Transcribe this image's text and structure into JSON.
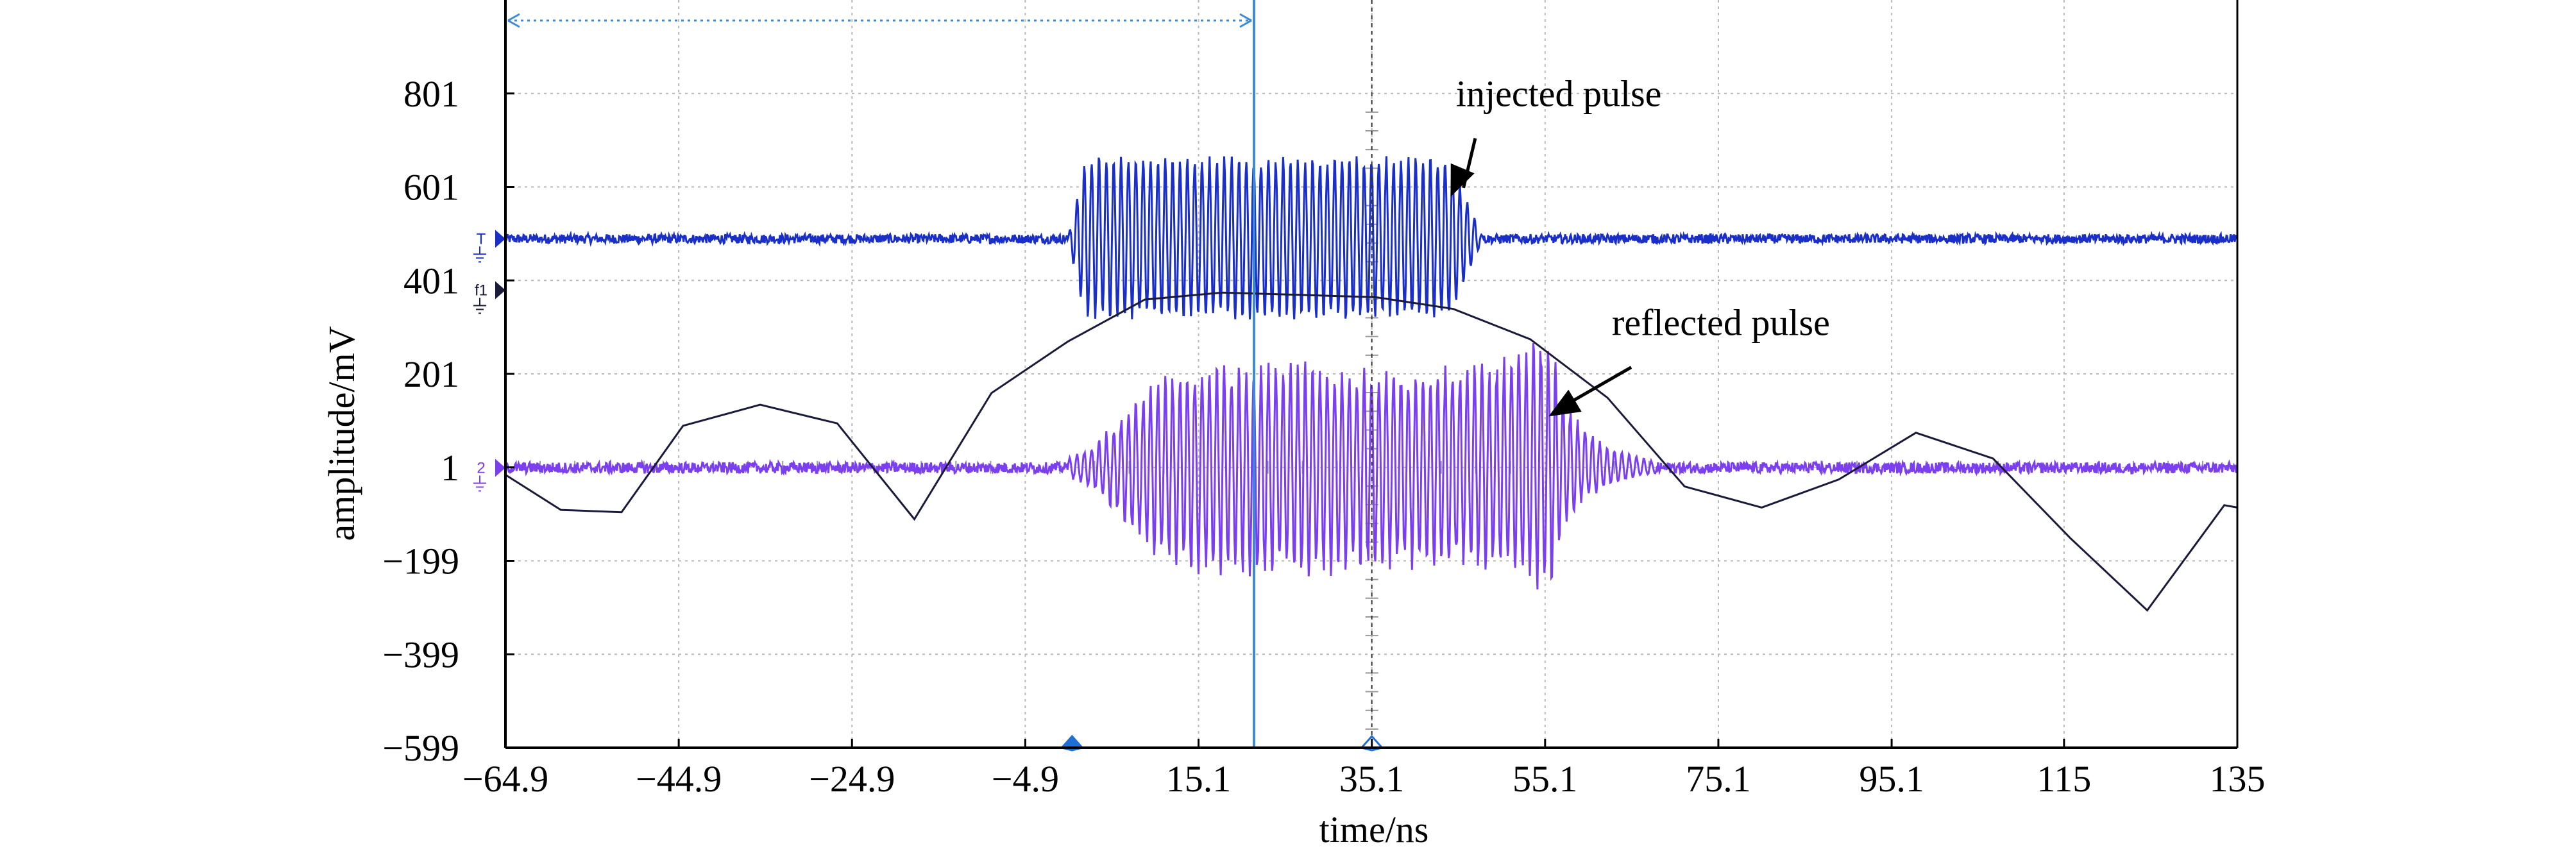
{
  "chart_data": {
    "type": "line",
    "title": "",
    "xlabel": "time/ns",
    "ylabel": "amplitude/mV",
    "xlim": [
      -64.9,
      135
    ],
    "ylim": [
      -599,
      1001
    ],
    "xticks": [
      -64.9,
      -44.9,
      -24.9,
      -4.9,
      15.1,
      35.1,
      55.1,
      75.1,
      95.1,
      115,
      135
    ],
    "xtick_labels": [
      "−64.9",
      "−44.9",
      "−24.9",
      "−4.9",
      "15.1",
      "35.1",
      "55.1",
      "75.1",
      "95.1",
      "115",
      "135"
    ],
    "yticks": [
      -599,
      -399,
      -199,
      1,
      201,
      401,
      601,
      801
    ],
    "ytick_labels": [
      "−599",
      "−399",
      "−199",
      "1",
      "201",
      "401",
      "601",
      "801"
    ],
    "grid": true,
    "cursor": {
      "time": 21.5,
      "range_start": -64.9,
      "range_end": 21.5
    },
    "trigger_marker_time": 35.1,
    "x_markers": [
      0.5,
      35.1
    ],
    "series": [
      {
        "color": "#1a2fc8",
        "marker_label": "T",
        "type": "burst",
        "offset": 490,
        "noise": 10,
        "burst_start": 0,
        "burst_end": 48,
        "rise": 2,
        "fall": 4,
        "burst_min": 315,
        "burst_max": 670,
        "cycle_ns": 0.85
      },
      {
        "color": "#7b3ff0",
        "marker_label": "2",
        "type": "burst",
        "offset": 0,
        "noise": 12,
        "burst_start": 0,
        "burst_end": 68,
        "envelope": [
          [
            0,
            20
          ],
          [
            3,
            50
          ],
          [
            7,
            130
          ],
          [
            10,
            190
          ],
          [
            14,
            230
          ],
          [
            20,
            235
          ],
          [
            30,
            230
          ],
          [
            40,
            215
          ],
          [
            46,
            230
          ],
          [
            50,
            250
          ],
          [
            53,
            280
          ],
          [
            55.5,
            300
          ],
          [
            57,
            170
          ],
          [
            59,
            100
          ],
          [
            62,
            55
          ],
          [
            65,
            30
          ],
          [
            68,
            12
          ]
        ],
        "envelope_neg": [
          [
            0,
            20
          ],
          [
            3,
            50
          ],
          [
            7,
            130
          ],
          [
            10,
            190
          ],
          [
            14,
            230
          ],
          [
            20,
            240
          ],
          [
            30,
            240
          ],
          [
            40,
            220
          ],
          [
            46,
            220
          ],
          [
            50,
            230
          ],
          [
            53,
            250
          ],
          [
            55.5,
            310
          ],
          [
            57,
            140
          ],
          [
            59,
            80
          ],
          [
            62,
            45
          ],
          [
            65,
            25
          ],
          [
            68,
            12
          ]
        ],
        "cycle_ns": 0.85
      },
      {
        "color": "#1a1a3a",
        "marker_label": "f1",
        "type": "polyline",
        "x": [
          -64.9,
          -58.5,
          -51.5,
          -44.4,
          -35.5,
          -26.6,
          -17.7,
          -8.8,
          0,
          8.9,
          17.8,
          26.7,
          35.6,
          44.5,
          53.4,
          62.3,
          71.2,
          80.1,
          89,
          97.9,
          106.8,
          115.7,
          124.6,
          133.5,
          135
        ],
        "y": [
          -15,
          -90,
          -95,
          90,
          135,
          95,
          -110,
          160,
          270,
          360,
          375,
          370,
          365,
          340,
          275,
          150,
          -40,
          -85,
          -25,
          75,
          20,
          -150,
          -305,
          -80,
          -85
        ]
      }
    ],
    "annotations": [
      {
        "text": "injected pulse",
        "x": 50,
        "y": 760,
        "arrow_to": [
          44.2,
          580
        ]
      },
      {
        "text": "reflected pulse",
        "x": 68,
        "y": 270,
        "arrow_to": [
          55.5,
          110
        ]
      }
    ]
  }
}
